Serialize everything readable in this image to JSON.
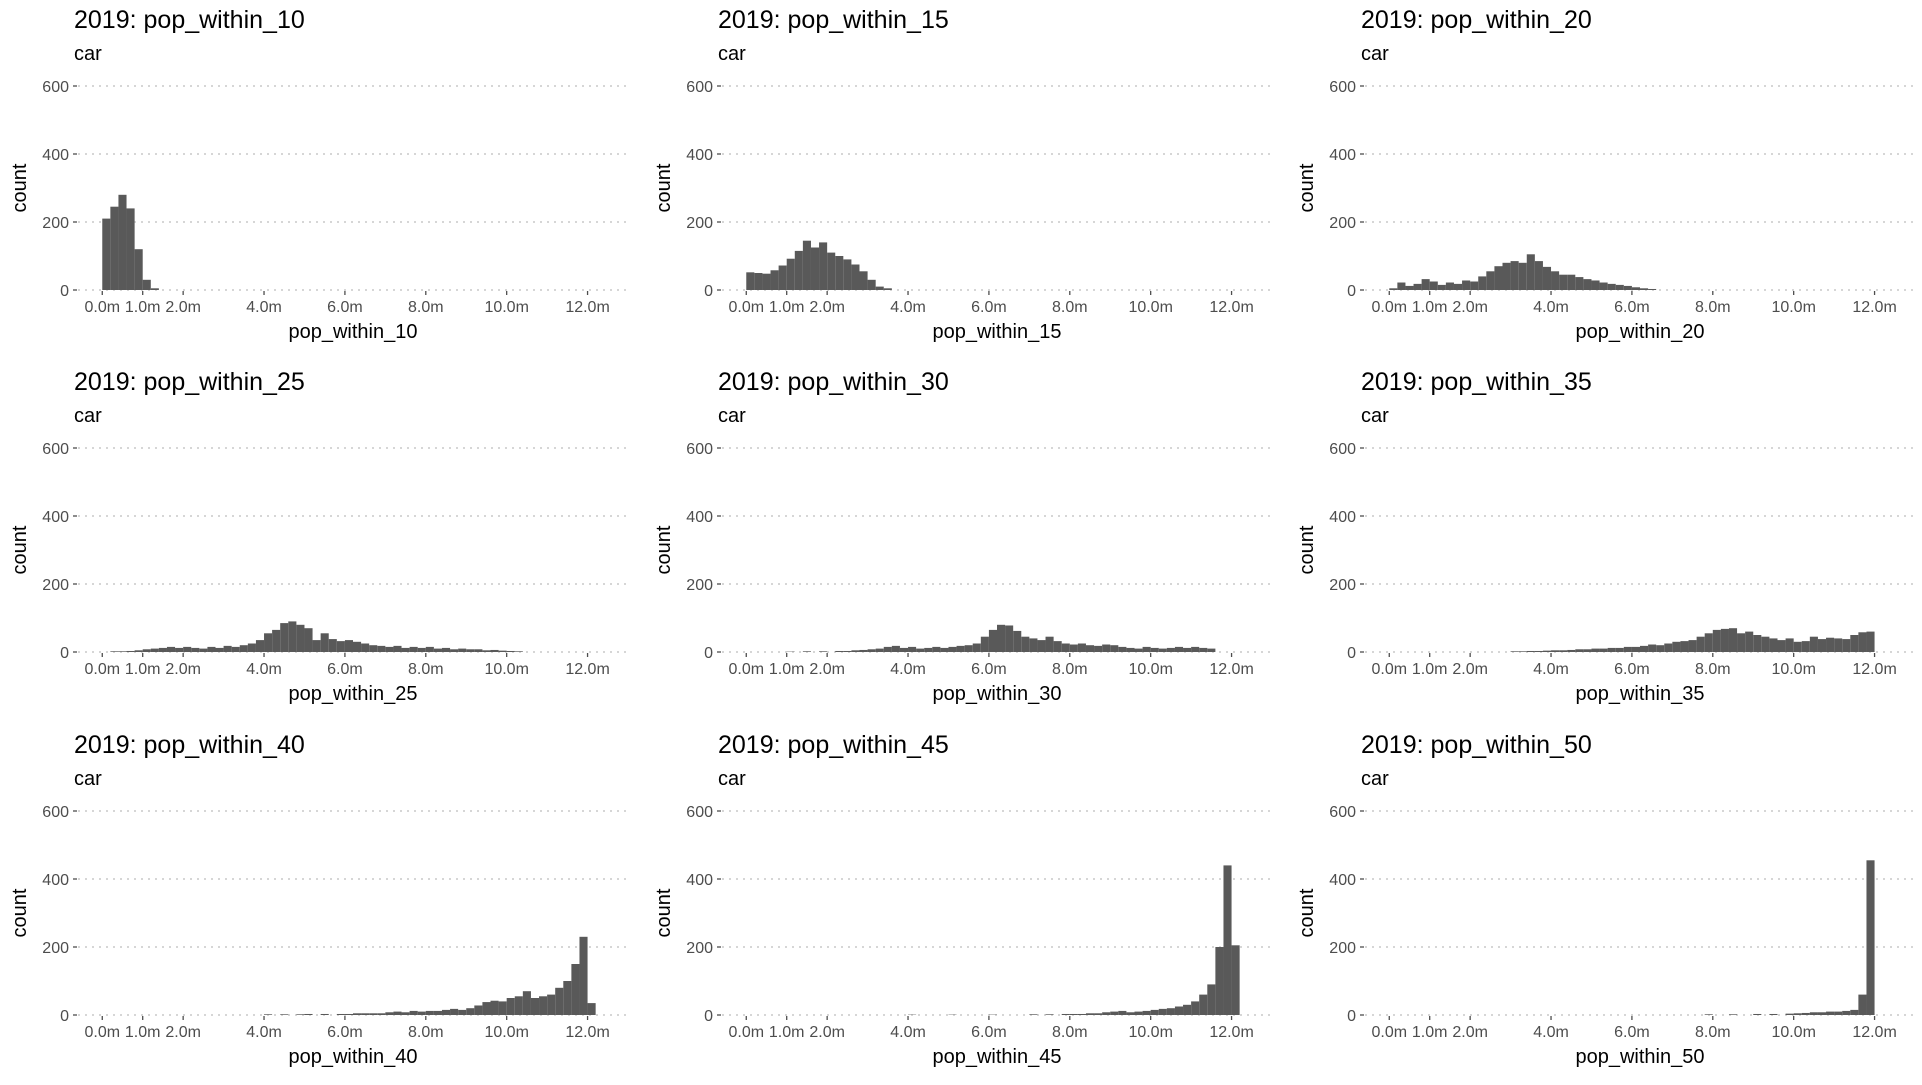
{
  "chart_data": [
    {
      "type": "bar",
      "title": "2019: pop_within_10",
      "subtitle": "car",
      "xlabel": "pop_within_10",
      "ylabel": "count",
      "ylim": [
        0,
        600
      ],
      "y_ticks": [
        0,
        200,
        400,
        600
      ],
      "x_tick_values": [
        0,
        1,
        2,
        4,
        6,
        8,
        10,
        12
      ],
      "x_tick_labels": [
        "0.0m",
        "1.0m",
        "2.0m",
        "4.0m",
        "6.0m",
        "8.0m",
        "10.0m",
        "12.0m"
      ],
      "xlim": [
        -0.6,
        13.0
      ],
      "bin_width": 0.2,
      "bins": [
        [
          0.1,
          210
        ],
        [
          0.3,
          245
        ],
        [
          0.5,
          280
        ],
        [
          0.7,
          240
        ],
        [
          0.9,
          120
        ],
        [
          1.1,
          30
        ],
        [
          1.3,
          5
        ]
      ]
    },
    {
      "type": "bar",
      "title": "2019: pop_within_15",
      "subtitle": "car",
      "xlabel": "pop_within_15",
      "ylabel": "count",
      "ylim": [
        0,
        600
      ],
      "y_ticks": [
        0,
        200,
        400,
        600
      ],
      "x_tick_values": [
        0,
        1,
        2,
        4,
        6,
        8,
        10,
        12
      ],
      "x_tick_labels": [
        "0.0m",
        "1.0m",
        "2.0m",
        "4.0m",
        "6.0m",
        "8.0m",
        "10.0m",
        "12.0m"
      ],
      "xlim": [
        -0.6,
        13.0
      ],
      "bin_width": 0.2,
      "bins": [
        [
          0.1,
          52
        ],
        [
          0.3,
          50
        ],
        [
          0.5,
          48
        ],
        [
          0.7,
          58
        ],
        [
          0.9,
          72
        ],
        [
          1.1,
          92
        ],
        [
          1.3,
          115
        ],
        [
          1.5,
          145
        ],
        [
          1.7,
          125
        ],
        [
          1.9,
          140
        ],
        [
          2.1,
          110
        ],
        [
          2.3,
          100
        ],
        [
          2.5,
          90
        ],
        [
          2.7,
          75
        ],
        [
          2.9,
          55
        ],
        [
          3.1,
          30
        ],
        [
          3.3,
          10
        ],
        [
          3.5,
          5
        ]
      ]
    },
    {
      "type": "bar",
      "title": "2019: pop_within_20",
      "subtitle": "car",
      "xlabel": "pop_within_20",
      "ylabel": "count",
      "ylim": [
        0,
        600
      ],
      "y_ticks": [
        0,
        200,
        400,
        600
      ],
      "x_tick_values": [
        0,
        1,
        2,
        4,
        6,
        8,
        10,
        12
      ],
      "x_tick_labels": [
        "0.0m",
        "1.0m",
        "2.0m",
        "4.0m",
        "6.0m",
        "8.0m",
        "10.0m",
        "12.0m"
      ],
      "xlim": [
        -0.6,
        13.0
      ],
      "bin_width": 0.2,
      "bins": [
        [
          0.1,
          5
        ],
        [
          0.3,
          22
        ],
        [
          0.5,
          12
        ],
        [
          0.7,
          18
        ],
        [
          0.9,
          32
        ],
        [
          1.1,
          25
        ],
        [
          1.3,
          15
        ],
        [
          1.5,
          22
        ],
        [
          1.7,
          18
        ],
        [
          1.9,
          28
        ],
        [
          2.1,
          25
        ],
        [
          2.3,
          40
        ],
        [
          2.5,
          55
        ],
        [
          2.7,
          70
        ],
        [
          2.9,
          80
        ],
        [
          3.1,
          85
        ],
        [
          3.3,
          80
        ],
        [
          3.5,
          105
        ],
        [
          3.7,
          85
        ],
        [
          3.9,
          68
        ],
        [
          4.1,
          55
        ],
        [
          4.3,
          45
        ],
        [
          4.5,
          45
        ],
        [
          4.7,
          38
        ],
        [
          4.9,
          32
        ],
        [
          5.1,
          28
        ],
        [
          5.3,
          22
        ],
        [
          5.5,
          18
        ],
        [
          5.7,
          15
        ],
        [
          5.9,
          12
        ],
        [
          6.1,
          8
        ],
        [
          6.3,
          5
        ],
        [
          6.5,
          3
        ]
      ]
    },
    {
      "type": "bar",
      "title": "2019: pop_within_25",
      "subtitle": "car",
      "xlabel": "pop_within_25",
      "ylabel": "count",
      "ylim": [
        0,
        600
      ],
      "y_ticks": [
        0,
        200,
        400,
        600
      ],
      "x_tick_values": [
        0,
        1,
        2,
        4,
        6,
        8,
        10,
        12
      ],
      "x_tick_labels": [
        "0.0m",
        "1.0m",
        "2.0m",
        "4.0m",
        "6.0m",
        "8.0m",
        "10.0m",
        "12.0m"
      ],
      "xlim": [
        -0.6,
        13.0
      ],
      "bin_width": 0.2,
      "bins": [
        [
          0.3,
          2
        ],
        [
          0.5,
          2
        ],
        [
          0.7,
          3
        ],
        [
          0.9,
          5
        ],
        [
          1.1,
          8
        ],
        [
          1.3,
          10
        ],
        [
          1.5,
          12
        ],
        [
          1.7,
          15
        ],
        [
          1.9,
          12
        ],
        [
          2.1,
          15
        ],
        [
          2.3,
          12
        ],
        [
          2.5,
          10
        ],
        [
          2.7,
          15
        ],
        [
          2.9,
          12
        ],
        [
          3.1,
          18
        ],
        [
          3.3,
          15
        ],
        [
          3.5,
          20
        ],
        [
          3.7,
          25
        ],
        [
          3.9,
          35
        ],
        [
          4.1,
          55
        ],
        [
          4.3,
          65
        ],
        [
          4.5,
          85
        ],
        [
          4.7,
          90
        ],
        [
          4.9,
          80
        ],
        [
          5.1,
          70
        ],
        [
          5.3,
          35
        ],
        [
          5.5,
          55
        ],
        [
          5.7,
          38
        ],
        [
          5.9,
          32
        ],
        [
          6.1,
          35
        ],
        [
          6.3,
          30
        ],
        [
          6.5,
          25
        ],
        [
          6.7,
          20
        ],
        [
          6.9,
          18
        ],
        [
          7.1,
          15
        ],
        [
          7.3,
          18
        ],
        [
          7.5,
          12
        ],
        [
          7.7,
          15
        ],
        [
          7.9,
          12
        ],
        [
          8.1,
          15
        ],
        [
          8.3,
          10
        ],
        [
          8.5,
          12
        ],
        [
          8.7,
          8
        ],
        [
          8.9,
          10
        ],
        [
          9.1,
          8
        ],
        [
          9.3,
          8
        ],
        [
          9.5,
          5
        ],
        [
          9.7,
          6
        ],
        [
          9.9,
          4
        ],
        [
          10.1,
          3
        ],
        [
          10.3,
          2
        ]
      ]
    },
    {
      "type": "bar",
      "title": "2019: pop_within_30",
      "subtitle": "car",
      "xlabel": "pop_within_30",
      "ylabel": "count",
      "ylim": [
        0,
        600
      ],
      "y_ticks": [
        0,
        200,
        400,
        600
      ],
      "x_tick_values": [
        0,
        1,
        2,
        4,
        6,
        8,
        10,
        12
      ],
      "x_tick_labels": [
        "0.0m",
        "1.0m",
        "2.0m",
        "4.0m",
        "6.0m",
        "8.0m",
        "10.0m",
        "12.0m"
      ],
      "xlim": [
        -0.6,
        13.0
      ],
      "bin_width": 0.2,
      "bins": [
        [
          1.1,
          1
        ],
        [
          1.5,
          2
        ],
        [
          1.9,
          2
        ],
        [
          2.3,
          3
        ],
        [
          2.5,
          3
        ],
        [
          2.7,
          5
        ],
        [
          2.9,
          6
        ],
        [
          3.1,
          8
        ],
        [
          3.3,
          10
        ],
        [
          3.5,
          15
        ],
        [
          3.7,
          18
        ],
        [
          3.9,
          12
        ],
        [
          4.1,
          15
        ],
        [
          4.3,
          10
        ],
        [
          4.5,
          12
        ],
        [
          4.7,
          15
        ],
        [
          4.9,
          12
        ],
        [
          5.1,
          15
        ],
        [
          5.3,
          18
        ],
        [
          5.5,
          20
        ],
        [
          5.7,
          25
        ],
        [
          5.9,
          45
        ],
        [
          6.1,
          65
        ],
        [
          6.3,
          80
        ],
        [
          6.5,
          78
        ],
        [
          6.7,
          62
        ],
        [
          6.9,
          45
        ],
        [
          7.1,
          40
        ],
        [
          7.3,
          35
        ],
        [
          7.5,
          45
        ],
        [
          7.7,
          32
        ],
        [
          7.9,
          25
        ],
        [
          8.1,
          22
        ],
        [
          8.3,
          25
        ],
        [
          8.5,
          20
        ],
        [
          8.7,
          18
        ],
        [
          8.9,
          22
        ],
        [
          9.1,
          20
        ],
        [
          9.3,
          15
        ],
        [
          9.5,
          12
        ],
        [
          9.7,
          10
        ],
        [
          9.9,
          15
        ],
        [
          10.1,
          12
        ],
        [
          10.3,
          10
        ],
        [
          10.5,
          12
        ],
        [
          10.7,
          15
        ],
        [
          10.9,
          12
        ],
        [
          11.1,
          15
        ],
        [
          11.3,
          12
        ],
        [
          11.5,
          10
        ]
      ]
    },
    {
      "type": "bar",
      "title": "2019: pop_within_35",
      "subtitle": "car",
      "xlabel": "pop_within_35",
      "ylabel": "count",
      "ylim": [
        0,
        600
      ],
      "y_ticks": [
        0,
        200,
        400,
        600
      ],
      "x_tick_values": [
        0,
        1,
        2,
        4,
        6,
        8,
        10,
        12
      ],
      "x_tick_labels": [
        "0.0m",
        "1.0m",
        "2.0m",
        "4.0m",
        "6.0m",
        "8.0m",
        "10.0m",
        "12.0m"
      ],
      "xlim": [
        -0.6,
        13.0
      ],
      "bin_width": 0.2,
      "bins": [
        [
          3.1,
          2
        ],
        [
          3.3,
          2
        ],
        [
          3.5,
          3
        ],
        [
          3.7,
          3
        ],
        [
          3.9,
          4
        ],
        [
          4.1,
          5
        ],
        [
          4.3,
          5
        ],
        [
          4.5,
          6
        ],
        [
          4.7,
          8
        ],
        [
          4.9,
          8
        ],
        [
          5.1,
          10
        ],
        [
          5.3,
          10
        ],
        [
          5.5,
          12
        ],
        [
          5.7,
          12
        ],
        [
          5.9,
          15
        ],
        [
          6.1,
          15
        ],
        [
          6.3,
          18
        ],
        [
          6.5,
          22
        ],
        [
          6.7,
          20
        ],
        [
          6.9,
          25
        ],
        [
          7.1,
          30
        ],
        [
          7.3,
          32
        ],
        [
          7.5,
          35
        ],
        [
          7.7,
          45
        ],
        [
          7.9,
          55
        ],
        [
          8.1,
          65
        ],
        [
          8.3,
          68
        ],
        [
          8.5,
          70
        ],
        [
          8.7,
          55
        ],
        [
          8.9,
          60
        ],
        [
          9.1,
          50
        ],
        [
          9.3,
          45
        ],
        [
          9.5,
          40
        ],
        [
          9.7,
          35
        ],
        [
          9.9,
          40
        ],
        [
          10.1,
          30
        ],
        [
          10.3,
          32
        ],
        [
          10.5,
          45
        ],
        [
          10.7,
          38
        ],
        [
          10.9,
          42
        ],
        [
          11.1,
          40
        ],
        [
          11.3,
          38
        ],
        [
          11.5,
          50
        ],
        [
          11.7,
          58
        ],
        [
          11.9,
          60
        ]
      ]
    },
    {
      "type": "bar",
      "title": "2019: pop_within_40",
      "subtitle": "car",
      "xlabel": "pop_within_40",
      "ylabel": "count",
      "ylim": [
        0,
        600
      ],
      "y_ticks": [
        0,
        200,
        400,
        600
      ],
      "x_tick_values": [
        0,
        1,
        2,
        4,
        6,
        8,
        10,
        12
      ],
      "x_tick_labels": [
        "0.0m",
        "1.0m",
        "2.0m",
        "4.0m",
        "6.0m",
        "8.0m",
        "10.0m",
        "12.0m"
      ],
      "xlim": [
        -0.6,
        13.0
      ],
      "bin_width": 0.2,
      "bins": [
        [
          4.1,
          2
        ],
        [
          4.5,
          2
        ],
        [
          4.9,
          2
        ],
        [
          5.1,
          3
        ],
        [
          5.5,
          3
        ],
        [
          5.9,
          3
        ],
        [
          6.1,
          3
        ],
        [
          6.3,
          5
        ],
        [
          6.5,
          5
        ],
        [
          6.7,
          5
        ],
        [
          6.9,
          5
        ],
        [
          7.1,
          8
        ],
        [
          7.3,
          10
        ],
        [
          7.5,
          8
        ],
        [
          7.7,
          12
        ],
        [
          7.9,
          10
        ],
        [
          8.1,
          12
        ],
        [
          8.3,
          12
        ],
        [
          8.5,
          15
        ],
        [
          8.7,
          18
        ],
        [
          8.9,
          15
        ],
        [
          9.1,
          20
        ],
        [
          9.3,
          28
        ],
        [
          9.5,
          38
        ],
        [
          9.7,
          42
        ],
        [
          9.9,
          40
        ],
        [
          10.1,
          50
        ],
        [
          10.3,
          55
        ],
        [
          10.5,
          70
        ],
        [
          10.7,
          50
        ],
        [
          10.9,
          55
        ],
        [
          11.1,
          60
        ],
        [
          11.3,
          80
        ],
        [
          11.5,
          100
        ],
        [
          11.7,
          150
        ],
        [
          11.9,
          230
        ],
        [
          12.1,
          35
        ]
      ]
    },
    {
      "type": "bar",
      "title": "2019: pop_within_45",
      "subtitle": "car",
      "xlabel": "pop_within_45",
      "ylabel": "count",
      "ylim": [
        0,
        600
      ],
      "y_ticks": [
        0,
        200,
        400,
        600
      ],
      "x_tick_values": [
        0,
        1,
        2,
        4,
        6,
        8,
        10,
        12
      ],
      "x_tick_labels": [
        "0.0m",
        "1.0m",
        "2.0m",
        "4.0m",
        "6.0m",
        "8.0m",
        "10.0m",
        "12.0m"
      ],
      "xlim": [
        -0.6,
        13.0
      ],
      "bin_width": 0.2,
      "bins": [
        [
          4.1,
          1
        ],
        [
          5.1,
          1
        ],
        [
          6.1,
          1
        ],
        [
          7.1,
          2
        ],
        [
          7.5,
          2
        ],
        [
          7.9,
          3
        ],
        [
          8.1,
          3
        ],
        [
          8.3,
          3
        ],
        [
          8.5,
          5
        ],
        [
          8.7,
          5
        ],
        [
          8.9,
          8
        ],
        [
          9.1,
          10
        ],
        [
          9.3,
          12
        ],
        [
          9.5,
          8
        ],
        [
          9.7,
          10
        ],
        [
          9.9,
          12
        ],
        [
          10.1,
          15
        ],
        [
          10.3,
          18
        ],
        [
          10.5,
          20
        ],
        [
          10.7,
          25
        ],
        [
          10.9,
          30
        ],
        [
          11.1,
          40
        ],
        [
          11.3,
          60
        ],
        [
          11.5,
          90
        ],
        [
          11.7,
          200
        ],
        [
          11.9,
          440
        ],
        [
          12.1,
          205
        ]
      ]
    },
    {
      "type": "bar",
      "title": "2019: pop_within_50",
      "subtitle": "car",
      "xlabel": "pop_within_50",
      "ylabel": "count",
      "ylim": [
        0,
        600
      ],
      "y_ticks": [
        0,
        200,
        400,
        600
      ],
      "x_tick_values": [
        0,
        1,
        2,
        4,
        6,
        8,
        10,
        12
      ],
      "x_tick_labels": [
        "0.0m",
        "1.0m",
        "2.0m",
        "4.0m",
        "6.0m",
        "8.0m",
        "10.0m",
        "12.0m"
      ],
      "xlim": [
        -0.6,
        13.0
      ],
      "bin_width": 0.2,
      "bins": [
        [
          7.9,
          2
        ],
        [
          8.5,
          2
        ],
        [
          9.1,
          3
        ],
        [
          9.5,
          3
        ],
        [
          9.9,
          4
        ],
        [
          10.1,
          5
        ],
        [
          10.3,
          6
        ],
        [
          10.5,
          8
        ],
        [
          10.7,
          8
        ],
        [
          10.9,
          10
        ],
        [
          11.1,
          10
        ],
        [
          11.3,
          12
        ],
        [
          11.5,
          15
        ],
        [
          11.7,
          60
        ],
        [
          11.9,
          455
        ]
      ]
    }
  ]
}
